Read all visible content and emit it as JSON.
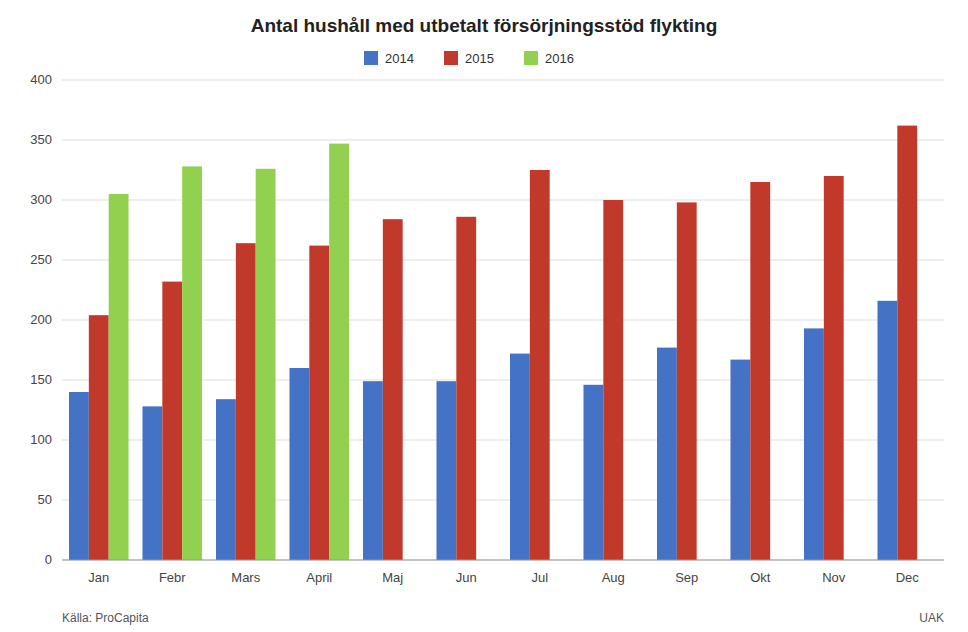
{
  "chart_data": {
    "type": "bar",
    "title": "Antal hushåll med utbetalt försörjningsstöd flykting",
    "categories": [
      "Jan",
      "Febr",
      "Mars",
      "April",
      "Maj",
      "Jun",
      "Jul",
      "Aug",
      "Sep",
      "Okt",
      "Nov",
      "Dec"
    ],
    "series": [
      {
        "name": "2014",
        "color": "#4472C4",
        "values": [
          140,
          128,
          134,
          160,
          149,
          149,
          172,
          146,
          177,
          167,
          193,
          216
        ]
      },
      {
        "name": "2015",
        "color": "#C0392B",
        "values": [
          204,
          232,
          264,
          262,
          284,
          286,
          325,
          300,
          298,
          315,
          320,
          362
        ]
      },
      {
        "name": "2016",
        "color": "#92D050",
        "values": [
          305,
          328,
          326,
          347,
          null,
          null,
          null,
          null,
          null,
          null,
          null,
          null
        ]
      }
    ],
    "ylim": [
      0,
      400
    ],
    "yticks": [
      0,
      50,
      100,
      150,
      200,
      250,
      300,
      350,
      400
    ],
    "grid": true,
    "legend": "top",
    "annotations": [
      "Källa: ProCapita",
      "UAK"
    ]
  }
}
